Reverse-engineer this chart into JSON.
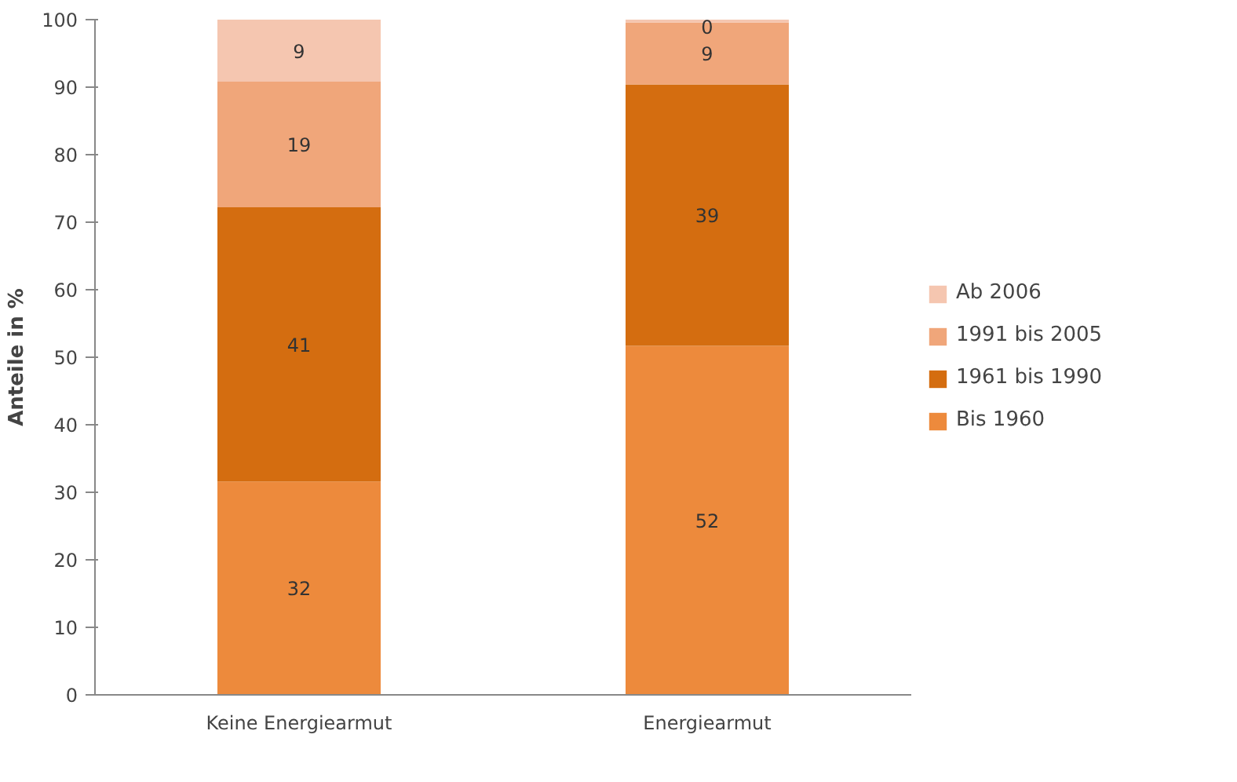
{
  "chart_data": {
    "type": "bar",
    "stacked": true,
    "ylabel": "Anteile in %",
    "categories": [
      "Keine Energiearmut",
      "Energiearmut"
    ],
    "series": [
      {
        "name": "Bis 1960",
        "color": "#ed8a3c",
        "values": [
          31.6,
          51.7
        ],
        "value_labels": [
          "32",
          "52"
        ]
      },
      {
        "name": "1961 bis 1990",
        "color": "#d46d10",
        "values": [
          40.6,
          38.7
        ],
        "value_labels": [
          "41",
          "39"
        ]
      },
      {
        "name": "1991 bis 2005",
        "color": "#f0a67a",
        "values": [
          18.6,
          9.2
        ],
        "value_labels": [
          "19",
          "9"
        ]
      },
      {
        "name": "Ab 2006",
        "color": "#f5c6b0",
        "values": [
          9.2,
          0.4
        ],
        "value_labels": [
          "9",
          "0"
        ]
      }
    ],
    "ylim": [
      0,
      100
    ],
    "yticks": [
      0,
      10,
      20,
      30,
      40,
      50,
      60,
      70,
      80,
      90,
      100
    ],
    "grid": false,
    "legend": "right"
  }
}
